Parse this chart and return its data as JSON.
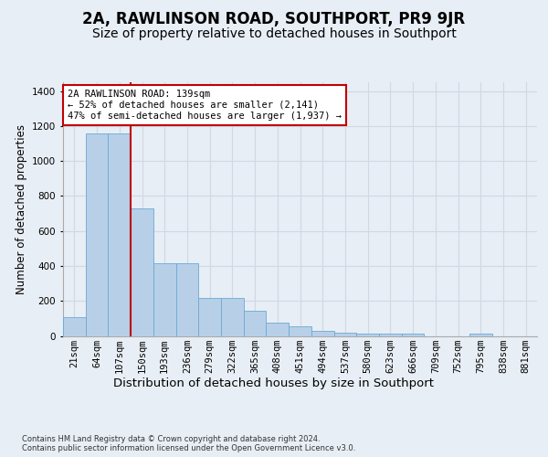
{
  "title": "2A, RAWLINSON ROAD, SOUTHPORT, PR9 9JR",
  "subtitle": "Size of property relative to detached houses in Southport",
  "xlabel": "Distribution of detached houses by size in Southport",
  "ylabel": "Number of detached properties",
  "categories": [
    "21sqm",
    "64sqm",
    "107sqm",
    "150sqm",
    "193sqm",
    "236sqm",
    "279sqm",
    "322sqm",
    "365sqm",
    "408sqm",
    "451sqm",
    "494sqm",
    "537sqm",
    "580sqm",
    "623sqm",
    "666sqm",
    "709sqm",
    "752sqm",
    "795sqm",
    "838sqm",
    "881sqm"
  ],
  "values": [
    105,
    1155,
    1155,
    730,
    415,
    415,
    215,
    215,
    145,
    75,
    55,
    30,
    20,
    15,
    15,
    12,
    0,
    0,
    12,
    0,
    0
  ],
  "bar_color": "#b8cfe8",
  "bar_edge_color": "#6aaad4",
  "vline_x": 2.5,
  "vline_color": "#c00000",
  "annotation_text": "2A RAWLINSON ROAD: 139sqm\n← 52% of detached houses are smaller (2,141)\n47% of semi-detached houses are larger (1,937) →",
  "annotation_box_color": "#ffffff",
  "annotation_box_edge": "#c00000",
  "background_color": "#e8eef5",
  "grid_color": "#d0d8e4",
  "ylim": [
    0,
    1450
  ],
  "yticks": [
    0,
    200,
    400,
    600,
    800,
    1000,
    1200,
    1400
  ],
  "footer": "Contains HM Land Registry data © Crown copyright and database right 2024.\nContains public sector information licensed under the Open Government Licence v3.0.",
  "title_fontsize": 12,
  "subtitle_fontsize": 10,
  "ylabel_fontsize": 8.5,
  "xlabel_fontsize": 9.5,
  "tick_fontsize": 7.5,
  "annotation_fontsize": 7.5,
  "footer_fontsize": 6
}
